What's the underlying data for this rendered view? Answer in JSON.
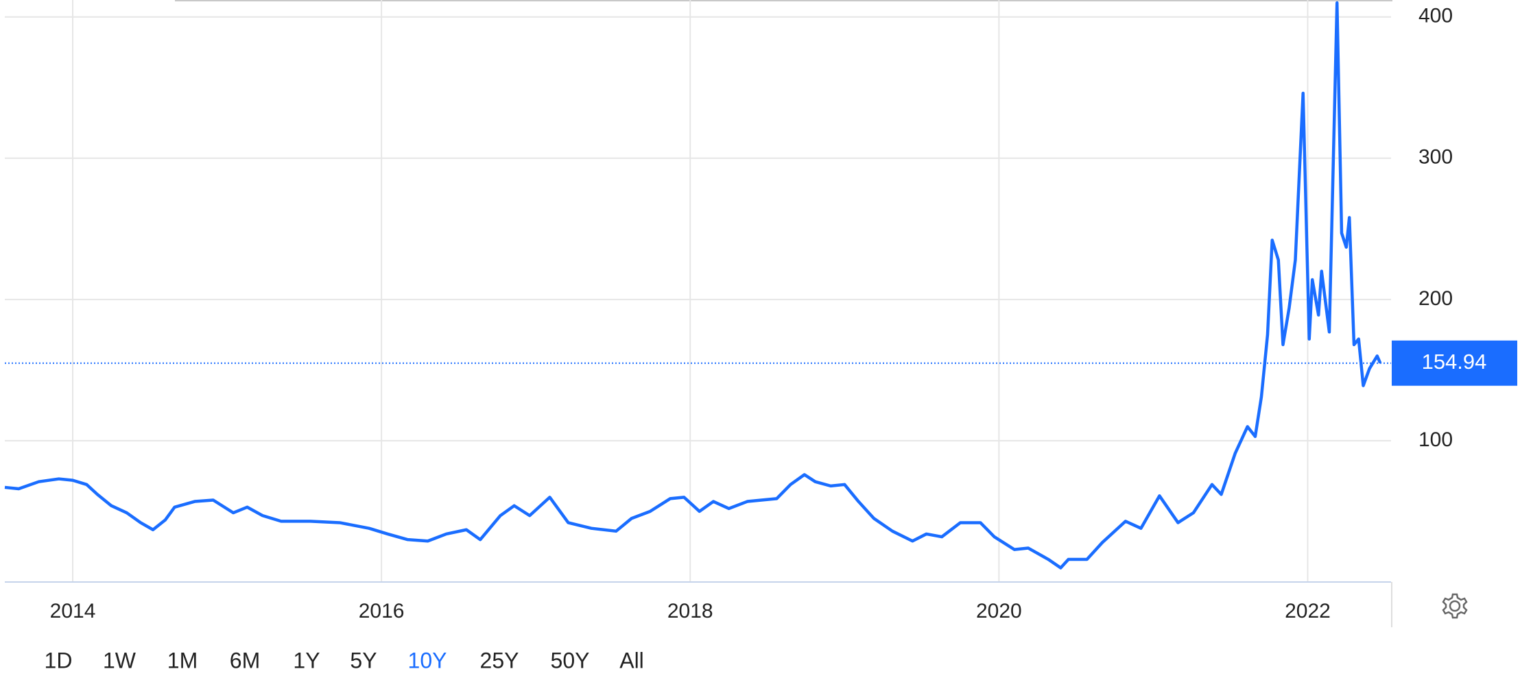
{
  "chart_data": {
    "type": "line",
    "x": [
      2013.56,
      2013.65,
      2013.78,
      2013.91,
      2014.0,
      2014.09,
      2014.16,
      2014.25,
      2014.35,
      2014.44,
      2014.52,
      2014.6,
      2014.66,
      2014.79,
      2014.91,
      2015.04,
      2015.13,
      2015.23,
      2015.35,
      2015.54,
      2015.73,
      2015.92,
      2016.04,
      2016.17,
      2016.3,
      2016.42,
      2016.55,
      2016.64,
      2016.77,
      2016.86,
      2016.96,
      2017.09,
      2017.21,
      2017.36,
      2017.52,
      2017.62,
      2017.74,
      2017.87,
      2017.96,
      2018.06,
      2018.15,
      2018.25,
      2018.37,
      2018.56,
      2018.65,
      2018.74,
      2018.81,
      2018.91,
      2019.0,
      2019.09,
      2019.19,
      2019.31,
      2019.44,
      2019.53,
      2019.63,
      2019.75,
      2019.88,
      2019.97,
      2020.1,
      2020.19,
      2020.32,
      2020.4,
      2020.45,
      2020.57,
      2020.67,
      2020.82,
      2020.92,
      2021.04,
      2021.16,
      2021.26,
      2021.38,
      2021.44,
      2021.53,
      2021.61,
      2021.66,
      2021.7,
      2021.74,
      2021.77,
      2021.81,
      2021.84,
      2021.88,
      2021.92,
      2021.97,
      2022.01,
      2022.03,
      2022.07,
      2022.09,
      2022.14,
      2022.19,
      2022.22,
      2022.25,
      2022.27,
      2022.3,
      2022.33,
      2022.36,
      2022.4,
      2022.45,
      2022.47
    ],
    "values": [
      67,
      66,
      71,
      73,
      72,
      69,
      62,
      54,
      49,
      42,
      37,
      44,
      53,
      57,
      58,
      49,
      53,
      47,
      43,
      43,
      42,
      38,
      34,
      30,
      29,
      34,
      37,
      30,
      47,
      54,
      47,
      60,
      42,
      38,
      36,
      45,
      50,
      59,
      60,
      50,
      57,
      52,
      57,
      59,
      69,
      76,
      71,
      68,
      69,
      57,
      45,
      36,
      29,
      34,
      32,
      42,
      42,
      32,
      23,
      24,
      16,
      10,
      16,
      16,
      28,
      43,
      38,
      61,
      42,
      49,
      69,
      62,
      91,
      110,
      103,
      131,
      175,
      242,
      228,
      168,
      194,
      228,
      346,
      172,
      214,
      189,
      220,
      177,
      410,
      247,
      237,
      258,
      168,
      172,
      139,
      151,
      160,
      155
    ],
    "color": "#1a6dff",
    "last_value": 154.94,
    "xlim": [
      2013.56,
      2022.54
    ],
    "xticks": [
      2014,
      2016,
      2018,
      2020,
      2022
    ],
    "ylim": [
      0,
      412
    ],
    "yticks": [
      100,
      200,
      300,
      400
    ],
    "grid": true
  },
  "range_buttons": [
    "1D",
    "1W",
    "1M",
    "6M",
    "1Y",
    "5Y",
    "10Y",
    "25Y",
    "50Y",
    "All"
  ],
  "selected_range": "10Y"
}
